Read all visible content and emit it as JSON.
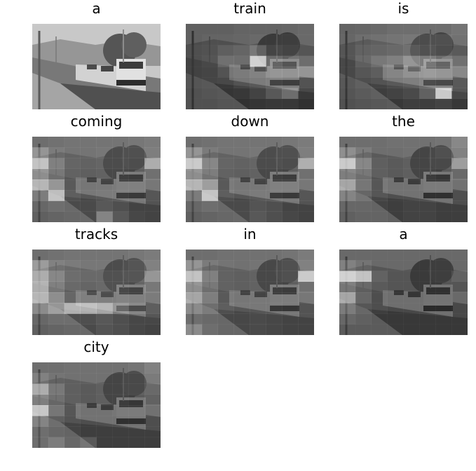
{
  "panels": [
    {
      "word": "a",
      "attention": null
    },
    {
      "word": "train",
      "attention": [
        [
          0.05,
          0.05,
          0.05,
          0.08,
          0.08,
          0.08,
          0.1,
          0.12
        ],
        [
          0.05,
          0.08,
          0.08,
          0.1,
          0.12,
          0.12,
          0.12,
          0.12
        ],
        [
          0.08,
          0.1,
          0.18,
          0.22,
          0.35,
          0.18,
          0.15,
          0.12
        ],
        [
          0.08,
          0.12,
          0.3,
          0.28,
          0.95,
          0.4,
          0.32,
          0.28
        ],
        [
          0.08,
          0.1,
          0.18,
          0.22,
          0.28,
          0.4,
          0.38,
          0.45
        ],
        [
          0.08,
          0.1,
          0.12,
          0.18,
          0.22,
          0.25,
          0.22,
          0.18
        ],
        [
          0.05,
          0.08,
          0.1,
          0.12,
          0.18,
          0.3,
          0.42,
          0.12
        ],
        [
          0.05,
          0.05,
          0.08,
          0.08,
          0.1,
          0.12,
          0.12,
          0.08
        ]
      ]
    },
    {
      "word": "is",
      "attention": [
        [
          0.08,
          0.1,
          0.12,
          0.15,
          0.15,
          0.15,
          0.15,
          0.2
        ],
        [
          0.1,
          0.15,
          0.18,
          0.2,
          0.22,
          0.22,
          0.22,
          0.18
        ],
        [
          0.12,
          0.2,
          0.22,
          0.25,
          0.3,
          0.25,
          0.2,
          0.15
        ],
        [
          0.12,
          0.25,
          0.35,
          0.4,
          0.55,
          0.5,
          0.4,
          0.3
        ],
        [
          0.12,
          0.2,
          0.25,
          0.3,
          0.4,
          0.45,
          0.4,
          0.35
        ],
        [
          0.1,
          0.15,
          0.18,
          0.22,
          0.25,
          0.3,
          0.28,
          0.22
        ],
        [
          0.08,
          0.12,
          0.15,
          0.18,
          0.22,
          0.35,
          0.95,
          0.2
        ],
        [
          0.05,
          0.08,
          0.1,
          0.12,
          0.15,
          0.15,
          0.18,
          0.12
        ]
      ]
    },
    {
      "word": "coming",
      "attention": [
        [
          0.15,
          0.18,
          0.2,
          0.2,
          0.2,
          0.2,
          0.22,
          0.25
        ],
        [
          0.45,
          0.25,
          0.2,
          0.2,
          0.22,
          0.22,
          0.22,
          0.28
        ],
        [
          0.85,
          0.4,
          0.22,
          0.2,
          0.22,
          0.22,
          0.2,
          0.7
        ],
        [
          0.55,
          0.35,
          0.2,
          0.18,
          0.2,
          0.2,
          0.18,
          0.3
        ],
        [
          0.8,
          0.6,
          0.22,
          0.18,
          0.2,
          0.22,
          0.22,
          0.22
        ],
        [
          0.35,
          0.85,
          0.25,
          0.2,
          0.22,
          0.22,
          0.2,
          0.2
        ],
        [
          0.2,
          0.25,
          0.22,
          0.22,
          0.3,
          0.25,
          0.18,
          0.18
        ],
        [
          0.15,
          0.18,
          0.2,
          0.22,
          0.55,
          0.3,
          0.2,
          0.18
        ]
      ]
    },
    {
      "word": "down",
      "attention": [
        [
          0.15,
          0.18,
          0.2,
          0.2,
          0.2,
          0.2,
          0.22,
          0.25
        ],
        [
          0.45,
          0.25,
          0.2,
          0.2,
          0.22,
          0.22,
          0.22,
          0.28
        ],
        [
          0.9,
          0.45,
          0.22,
          0.2,
          0.22,
          0.22,
          0.2,
          0.72
        ],
        [
          0.55,
          0.38,
          0.2,
          0.18,
          0.2,
          0.2,
          0.18,
          0.3
        ],
        [
          0.8,
          0.65,
          0.22,
          0.18,
          0.2,
          0.22,
          0.22,
          0.22
        ],
        [
          0.35,
          0.88,
          0.25,
          0.2,
          0.22,
          0.22,
          0.2,
          0.2
        ],
        [
          0.2,
          0.25,
          0.22,
          0.22,
          0.28,
          0.25,
          0.18,
          0.18
        ],
        [
          0.15,
          0.18,
          0.2,
          0.22,
          0.3,
          0.25,
          0.2,
          0.18
        ]
      ]
    },
    {
      "word": "the",
      "attention": [
        [
          0.15,
          0.15,
          0.15,
          0.18,
          0.18,
          0.18,
          0.2,
          0.35
        ],
        [
          0.4,
          0.25,
          0.15,
          0.15,
          0.18,
          0.18,
          0.22,
          0.3
        ],
        [
          0.9,
          0.45,
          0.18,
          0.15,
          0.18,
          0.18,
          0.18,
          0.6
        ],
        [
          0.45,
          0.35,
          0.18,
          0.15,
          0.18,
          0.18,
          0.15,
          0.25
        ],
        [
          0.7,
          0.4,
          0.2,
          0.15,
          0.15,
          0.18,
          0.18,
          0.18
        ],
        [
          0.4,
          0.3,
          0.2,
          0.15,
          0.15,
          0.15,
          0.15,
          0.15
        ],
        [
          0.2,
          0.2,
          0.18,
          0.15,
          0.18,
          0.18,
          0.15,
          0.15
        ],
        [
          0.15,
          0.18,
          0.18,
          0.15,
          0.18,
          0.18,
          0.15,
          0.15
        ]
      ]
    },
    {
      "word": "tracks",
      "attention": [
        [
          0.15,
          0.18,
          0.2,
          0.2,
          0.2,
          0.2,
          0.22,
          0.25
        ],
        [
          0.5,
          0.3,
          0.25,
          0.22,
          0.22,
          0.22,
          0.25,
          0.3
        ],
        [
          0.7,
          0.45,
          0.28,
          0.25,
          0.25,
          0.25,
          0.25,
          0.55
        ],
        [
          0.75,
          0.4,
          0.25,
          0.22,
          0.25,
          0.25,
          0.22,
          0.35
        ],
        [
          0.8,
          0.55,
          0.3,
          0.25,
          0.25,
          0.25,
          0.22,
          0.25
        ],
        [
          0.45,
          0.6,
          0.8,
          0.78,
          0.7,
          0.45,
          0.3,
          0.25
        ],
        [
          0.2,
          0.25,
          0.25,
          0.25,
          0.3,
          0.25,
          0.2,
          0.2
        ],
        [
          0.15,
          0.18,
          0.2,
          0.22,
          0.28,
          0.25,
          0.2,
          0.18
        ]
      ]
    },
    {
      "word": "in",
      "attention": [
        [
          0.15,
          0.15,
          0.18,
          0.18,
          0.18,
          0.18,
          0.2,
          0.25
        ],
        [
          0.45,
          0.25,
          0.2,
          0.18,
          0.2,
          0.2,
          0.22,
          0.3
        ],
        [
          0.85,
          0.4,
          0.2,
          0.18,
          0.2,
          0.2,
          0.22,
          0.9
        ],
        [
          0.55,
          0.35,
          0.2,
          0.18,
          0.2,
          0.2,
          0.18,
          0.3
        ],
        [
          0.7,
          0.45,
          0.22,
          0.18,
          0.2,
          0.2,
          0.2,
          0.22
        ],
        [
          0.45,
          0.35,
          0.25,
          0.2,
          0.2,
          0.2,
          0.18,
          0.18
        ],
        [
          0.25,
          0.22,
          0.2,
          0.2,
          0.22,
          0.2,
          0.18,
          0.18
        ],
        [
          0.45,
          0.25,
          0.2,
          0.2,
          0.22,
          0.2,
          0.18,
          0.18
        ]
      ]
    },
    {
      "word": "a",
      "attention": [
        [
          0.12,
          0.12,
          0.12,
          0.12,
          0.12,
          0.12,
          0.12,
          0.12
        ],
        [
          0.3,
          0.2,
          0.12,
          0.12,
          0.12,
          0.12,
          0.12,
          0.12
        ],
        [
          0.95,
          0.85,
          0.2,
          0.12,
          0.12,
          0.12,
          0.12,
          0.2
        ],
        [
          0.4,
          0.25,
          0.15,
          0.12,
          0.12,
          0.12,
          0.12,
          0.12
        ],
        [
          0.7,
          0.3,
          0.15,
          0.12,
          0.12,
          0.12,
          0.12,
          0.12
        ],
        [
          0.35,
          0.2,
          0.15,
          0.12,
          0.12,
          0.12,
          0.12,
          0.12
        ],
        [
          0.2,
          0.15,
          0.12,
          0.12,
          0.12,
          0.12,
          0.12,
          0.12
        ],
        [
          0.12,
          0.12,
          0.12,
          0.12,
          0.12,
          0.12,
          0.12,
          0.12
        ]
      ]
    },
    {
      "word": "city",
      "attention": [
        [
          0.15,
          0.15,
          0.18,
          0.18,
          0.18,
          0.18,
          0.2,
          0.3
        ],
        [
          0.3,
          0.2,
          0.18,
          0.18,
          0.18,
          0.18,
          0.18,
          0.25
        ],
        [
          0.7,
          0.35,
          0.18,
          0.15,
          0.18,
          0.18,
          0.18,
          0.25
        ],
        [
          0.45,
          0.3,
          0.18,
          0.15,
          0.18,
          0.18,
          0.15,
          0.2
        ],
        [
          0.9,
          0.4,
          0.2,
          0.15,
          0.15,
          0.18,
          0.18,
          0.18
        ],
        [
          0.4,
          0.25,
          0.18,
          0.15,
          0.15,
          0.15,
          0.15,
          0.15
        ],
        [
          0.25,
          0.2,
          0.18,
          0.15,
          0.15,
          0.15,
          0.15,
          0.15
        ],
        [
          0.25,
          0.35,
          0.2,
          0.3,
          0.15,
          0.15,
          0.15,
          0.15
        ]
      ]
    }
  ]
}
